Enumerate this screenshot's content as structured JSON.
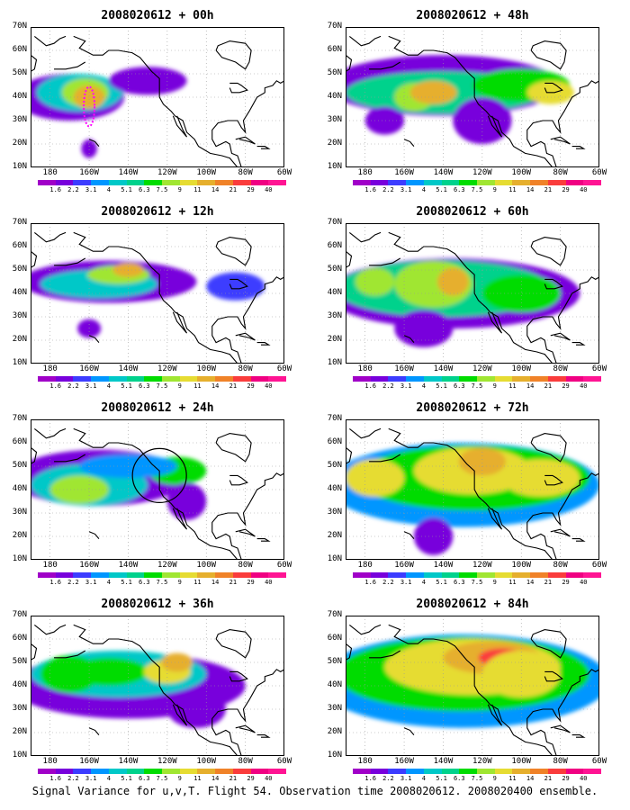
{
  "panels": [
    {
      "title": "2008020612 + 00h"
    },
    {
      "title": "2008020612 + 48h"
    },
    {
      "title": "2008020612 + 12h"
    },
    {
      "title": "2008020612 + 60h"
    },
    {
      "title": "2008020612 + 24h"
    },
    {
      "title": "2008020612 + 72h"
    },
    {
      "title": "2008020612 + 36h"
    },
    {
      "title": "2008020612 + 84h"
    }
  ],
  "y_ticks": [
    "70N",
    "60N",
    "50N",
    "40N",
    "30N",
    "20N",
    "10N"
  ],
  "x_ticks": [
    "180",
    "160W",
    "140W",
    "120W",
    "100W",
    "80W",
    "60W"
  ],
  "colorbar": {
    "labels": [
      "1.6",
      "2.2",
      "3.1",
      "4",
      "5.1",
      "6.3",
      "7.5",
      "9",
      "11",
      "14",
      "21",
      "29",
      "40"
    ],
    "colors": [
      "#a000c8",
      "#7800dc",
      "#3c3cff",
      "#0096ff",
      "#00c8c8",
      "#00d28c",
      "#00dc00",
      "#a0e632",
      "#e6dc32",
      "#e6af2d",
      "#f08228",
      "#fa3c3c",
      "#f00082",
      "#ff1493"
    ]
  },
  "caption": "Signal Variance for u,v,T. Flight 54. Observation time 2008020612. 2008020400 ensemble."
}
